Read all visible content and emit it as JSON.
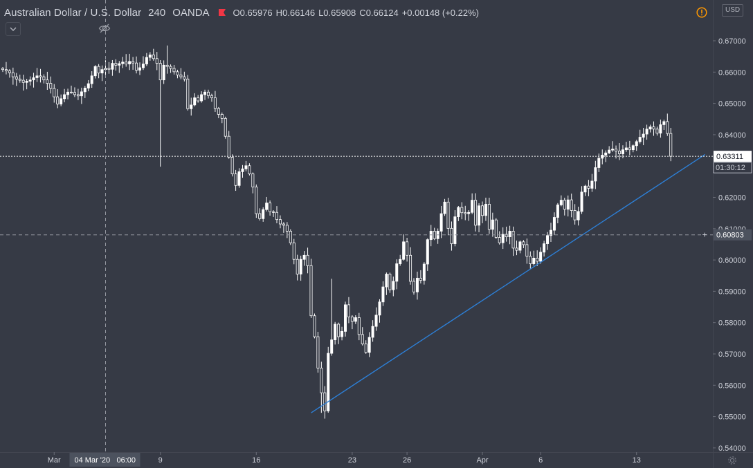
{
  "legend": {
    "symbol": "Australian Dollar / U.S. Dollar",
    "timeframe": "240",
    "broker": "OANDA",
    "flag_icon": "red-flag-icon",
    "open_label": "O",
    "open": "0.65976",
    "high_label": "H",
    "high": "0.66146",
    "low_label": "L",
    "low": "0.65908",
    "close_label": "C",
    "close": "0.66124",
    "change": "+0.00148 (+0.22%)"
  },
  "toolbar": {
    "collapse_icon": "chevron-down-icon",
    "hide_icon": "eye-crossed-icon",
    "warning_icon": "warning-icon",
    "currency": "USD",
    "settings_icon": "gear-icon"
  },
  "colors": {
    "background": "#363a45",
    "candle": "#ffffff",
    "trendline": "#2d7fd6",
    "text": "#d1d4dc",
    "warning": "#ff9800",
    "flag": "#f23645"
  },
  "chart_data": {
    "type": "candlestick",
    "symbol": "AUDUSD",
    "interval_minutes": 240,
    "ylim": [
      0.5355,
      0.6745
    ],
    "y_ticks": [
      "0.67000",
      "0.66000",
      "0.65000",
      "0.64000",
      "0.63000",
      "0.62000",
      "0.61000",
      "0.60000",
      "0.59000",
      "0.58000",
      "0.57000",
      "0.56000",
      "0.55000",
      "0.54000"
    ],
    "x_ticks": [
      {
        "label": "Mar",
        "bar": 15
      },
      {
        "label": "9",
        "bar": 46
      },
      {
        "label": "16",
        "bar": 74
      },
      {
        "label": "23",
        "bar": 102
      },
      {
        "label": "26",
        "bar": 118
      },
      {
        "label": "Apr",
        "bar": 140
      },
      {
        "label": "6",
        "bar": 157
      },
      {
        "label": "13",
        "bar": 185
      }
    ],
    "last_price": {
      "label": "0.63311",
      "value": 0.63311,
      "countdown": "01:30:12"
    },
    "crosshair": {
      "price_label": "0.60803",
      "value": 0.60803,
      "date_label": "04 Mar '20",
      "time_label": "06:00",
      "bar": 30
    },
    "trendline": {
      "start": {
        "bar": 90,
        "price": 0.5512
      },
      "end": {
        "bar": 205,
        "price": 0.6337
      }
    },
    "closes": [
      0.6608,
      0.6604,
      0.6598,
      0.6585,
      0.6578,
      0.6574,
      0.6567,
      0.6571,
      0.6575,
      0.6582,
      0.6588,
      0.6585,
      0.6575,
      0.6564,
      0.6548,
      0.6521,
      0.6498,
      0.6515,
      0.6528,
      0.6536,
      0.6535,
      0.6528,
      0.6524,
      0.6537,
      0.6549,
      0.6563,
      0.6588,
      0.6618,
      0.6597,
      0.6608,
      0.6612,
      0.6609,
      0.6628,
      0.6622,
      0.6627,
      0.6632,
      0.6626,
      0.6634,
      0.6629,
      0.6606,
      0.6614,
      0.6626,
      0.6647,
      0.6655,
      0.6643,
      0.6628,
      0.6575,
      0.6622,
      0.6618,
      0.6612,
      0.6601,
      0.6591,
      0.6585,
      0.6578,
      0.6483,
      0.6495,
      0.6518,
      0.6508,
      0.6528,
      0.6536,
      0.6525,
      0.6518,
      0.6484,
      0.6465,
      0.6452,
      0.6395,
      0.6328,
      0.6275,
      0.6238,
      0.6282,
      0.6291,
      0.6301,
      0.6275,
      0.6233,
      0.6148,
      0.6132,
      0.6161,
      0.6182,
      0.6154,
      0.6152,
      0.6129,
      0.6115,
      0.6111,
      0.6092,
      0.6055,
      0.6002,
      0.5955,
      0.6002,
      0.6015,
      0.5982,
      0.5822,
      0.5755,
      0.5655,
      0.5576,
      0.5518,
      0.5702,
      0.5745,
      0.5795,
      0.5755,
      0.5772,
      0.5857,
      0.5818,
      0.5804,
      0.5816,
      0.5762,
      0.5732,
      0.5705,
      0.5753,
      0.5788,
      0.5824,
      0.5866,
      0.5914,
      0.5955,
      0.5905,
      0.5932,
      0.5988,
      0.6002,
      0.6058,
      0.6015,
      0.5932,
      0.5898,
      0.5942,
      0.5935,
      0.5987,
      0.6065,
      0.6092,
      0.6068,
      0.6092,
      0.6148,
      0.6185,
      0.6101,
      0.6052,
      0.6138,
      0.6168,
      0.6151,
      0.6148,
      0.6152,
      0.6191,
      0.6111,
      0.6173,
      0.6142,
      0.6178,
      0.6098,
      0.6128,
      0.6072,
      0.6055,
      0.6082,
      0.6074,
      0.6092,
      0.6038,
      0.6031,
      0.6058,
      0.6049,
      0.6012,
      0.5988,
      0.6006,
      0.5996,
      0.6025,
      0.6052,
      0.6078,
      0.6095,
      0.6136,
      0.6176,
      0.6191,
      0.6162,
      0.6192,
      0.6158,
      0.6128,
      0.6155,
      0.6217,
      0.6236,
      0.6229,
      0.6252,
      0.6295,
      0.6325,
      0.6335,
      0.6342,
      0.6351,
      0.6354,
      0.6348,
      0.6339,
      0.6352,
      0.6358,
      0.6352,
      0.6365,
      0.6378,
      0.6392,
      0.6402,
      0.6418,
      0.6425,
      0.6418,
      0.6405,
      0.6432,
      0.6442,
      0.6404,
      0.6331
    ]
  }
}
